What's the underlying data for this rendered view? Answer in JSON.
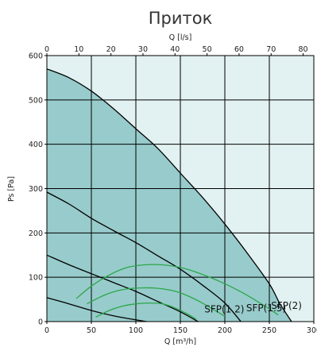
{
  "chart_data": {
    "type": "area",
    "title": "Приток",
    "xlabel": "Q [m³/h]",
    "x2label": "Q [l/s]",
    "ylabel": "Ps [Pa]",
    "xlim": [
      0,
      300
    ],
    "x2lim": [
      0,
      83.333
    ],
    "ylim": [
      0,
      600
    ],
    "x_ticks": [
      "0",
      "50",
      "100",
      "150",
      "200",
      "250",
      "300"
    ],
    "x2_ticks": [
      "0",
      "10",
      "20",
      "30",
      "40",
      "50",
      "60",
      "70",
      "80"
    ],
    "y_ticks": [
      "0",
      "100",
      "200",
      "300",
      "400",
      "500",
      "600"
    ],
    "grid": true,
    "colors": {
      "plot_bg": "#e2f1f1",
      "area_fill": "#98cbcb",
      "curve": "#000000",
      "sfp_line": "#2aa84a",
      "grid": "#000000"
    },
    "envelope": [
      [
        0,
        570
      ],
      [
        25,
        550
      ],
      [
        50,
        520
      ],
      [
        75,
        480
      ],
      [
        100,
        435
      ],
      [
        125,
        390
      ],
      [
        150,
        335
      ],
      [
        175,
        280
      ],
      [
        200,
        220
      ],
      [
        225,
        155
      ],
      [
        250,
        85
      ],
      [
        262,
        40
      ],
      [
        275,
        0
      ]
    ],
    "series": [
      {
        "values": [
          [
            0,
            570
          ],
          [
            25,
            550
          ],
          [
            50,
            520
          ],
          [
            75,
            480
          ],
          [
            100,
            435
          ],
          [
            125,
            390
          ],
          [
            150,
            335
          ],
          [
            175,
            280
          ],
          [
            200,
            220
          ],
          [
            225,
            155
          ],
          [
            250,
            85
          ],
          [
            262,
            40
          ],
          [
            275,
            0
          ]
        ]
      },
      {
        "values": [
          [
            0,
            292
          ],
          [
            25,
            265
          ],
          [
            50,
            233
          ],
          [
            75,
            205
          ],
          [
            100,
            178
          ],
          [
            125,
            148
          ],
          [
            150,
            118
          ],
          [
            175,
            82
          ],
          [
            200,
            42
          ],
          [
            218,
            0
          ]
        ]
      },
      {
        "values": [
          [
            0,
            150
          ],
          [
            25,
            128
          ],
          [
            50,
            108
          ],
          [
            75,
            88
          ],
          [
            100,
            68
          ],
          [
            125,
            45
          ],
          [
            150,
            22
          ],
          [
            170,
            0
          ]
        ]
      },
      {
        "values": [
          [
            0,
            54
          ],
          [
            25,
            40
          ],
          [
            50,
            25
          ],
          [
            75,
            13
          ],
          [
            100,
            4
          ],
          [
            112,
            0
          ]
        ]
      }
    ],
    "sfp_series": [
      {
        "name": "SFP(1.2)",
        "values": [
          [
            55,
            10
          ],
          [
            70,
            25
          ],
          [
            85,
            35
          ],
          [
            100,
            40
          ],
          [
            115,
            42
          ],
          [
            130,
            40
          ],
          [
            145,
            30
          ],
          [
            160,
            15
          ],
          [
            168,
            5
          ]
        ]
      },
      {
        "name": "SFP(1.5)",
        "values": [
          [
            45,
            40
          ],
          [
            65,
            60
          ],
          [
            85,
            72
          ],
          [
            105,
            76
          ],
          [
            125,
            75
          ],
          [
            145,
            68
          ],
          [
            165,
            52
          ],
          [
            185,
            30
          ],
          [
            200,
            12
          ]
        ]
      },
      {
        "name": "SFP(2)",
        "values": [
          [
            33,
            52
          ],
          [
            50,
            80
          ],
          [
            70,
            105
          ],
          [
            90,
            122
          ],
          [
            110,
            128
          ],
          [
            130,
            128
          ],
          [
            150,
            122
          ],
          [
            170,
            110
          ],
          [
            195,
            90
          ],
          [
            220,
            65
          ],
          [
            245,
            35
          ],
          [
            260,
            15
          ]
        ]
      }
    ]
  }
}
